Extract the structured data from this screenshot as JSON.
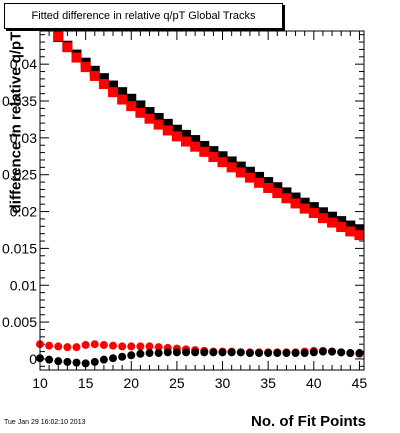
{
  "page": {
    "title": "Fitted difference in relative q/pT  Global Tracks",
    "timestamp": "Tue Jan 29 16:02:10 2013"
  },
  "chart_data": {
    "type": "scatter",
    "title": "Fitted difference in relative q/pT  Global Tracks",
    "xlabel": "No. of Fit Points",
    "ylabel": "difference in relative q/pT",
    "xlim": [
      10,
      45.5
    ],
    "ylim": [
      -0.0015,
      0.0445
    ],
    "x_ticks": [
      "10",
      "15",
      "20",
      "25",
      "30",
      "35",
      "40",
      "45"
    ],
    "y_ticks": [
      "0",
      "0.005",
      "0.01",
      "0.015",
      "0.02",
      "0.025",
      "0.03",
      "0.035",
      "0.04"
    ],
    "y_tick_values": [
      0,
      0.005,
      0.01,
      0.015,
      0.02,
      0.025,
      0.03,
      0.035,
      0.04
    ],
    "grid": false,
    "legend": false,
    "colors": {
      "black": "#000000",
      "red": "#ff0000"
    },
    "series": [
      {
        "marker": "square",
        "color": "#000000",
        "x": [
          12,
          13,
          14,
          15,
          16,
          17,
          18,
          19,
          20,
          21,
          22,
          23,
          24,
          25,
          26,
          27,
          28,
          29,
          30,
          31,
          32,
          33,
          34,
          35,
          36,
          37,
          38,
          39,
          40,
          41,
          42,
          43,
          44,
          45
        ],
        "y": [
          0.0437,
          0.0425,
          0.0413,
          0.0402,
          0.0391,
          0.0381,
          0.0371,
          0.0362,
          0.0353,
          0.0344,
          0.0335,
          0.0327,
          0.0319,
          0.0311,
          0.0304,
          0.0297,
          0.0289,
          0.0282,
          0.0275,
          0.0268,
          0.0261,
          0.0254,
          0.0247,
          0.024,
          0.0233,
          0.0226,
          0.0219,
          0.0212,
          0.0206,
          0.0199,
          0.0193,
          0.0187,
          0.0181,
          0.0176
        ]
      },
      {
        "marker": "square",
        "color": "#ff0000",
        "x": [
          12,
          13,
          14,
          15,
          16,
          17,
          18,
          19,
          20,
          21,
          22,
          23,
          24,
          25,
          26,
          27,
          28,
          29,
          30,
          31,
          32,
          33,
          34,
          35,
          36,
          37,
          38,
          39,
          40,
          41,
          42,
          43,
          44,
          45
        ],
        "y": [
          0.0438,
          0.0423,
          0.0409,
          0.0396,
          0.0384,
          0.0373,
          0.0362,
          0.0352,
          0.0343,
          0.0334,
          0.0326,
          0.0318,
          0.031,
          0.0302,
          0.0295,
          0.0288,
          0.0281,
          0.0274,
          0.0267,
          0.026,
          0.0253,
          0.0246,
          0.0239,
          0.0232,
          0.0225,
          0.0218,
          0.0211,
          0.0204,
          0.0198,
          0.0191,
          0.0185,
          0.0179,
          0.0173,
          0.0168
        ]
      },
      {
        "marker": "circle",
        "color": "#ff0000",
        "x": [
          10,
          11,
          12,
          13,
          14,
          15,
          16,
          17,
          18,
          19,
          20,
          21,
          22,
          23,
          24,
          25,
          26,
          27,
          28,
          29,
          30,
          31,
          32,
          33,
          34,
          35,
          36,
          37,
          38,
          39,
          40,
          41,
          42,
          43,
          44,
          45
        ],
        "y": [
          0.002,
          0.0018,
          0.0017,
          0.0016,
          0.0016,
          0.0019,
          0.002,
          0.0019,
          0.0018,
          0.0017,
          0.0017,
          0.0017,
          0.0017,
          0.0016,
          0.0015,
          0.0014,
          0.0013,
          0.0012,
          0.0011,
          0.001,
          0.001,
          0.001,
          0.0009,
          0.0009,
          0.0009,
          0.0009,
          0.0009,
          0.0009,
          0.0009,
          0.001,
          0.0011,
          0.0011,
          0.001,
          0.0009,
          0.0008,
          0.0007
        ]
      },
      {
        "marker": "circle",
        "color": "#000000",
        "x": [
          10,
          11,
          12,
          13,
          14,
          15,
          16,
          17,
          18,
          19,
          20,
          21,
          22,
          23,
          24,
          25,
          26,
          27,
          28,
          29,
          30,
          31,
          32,
          33,
          34,
          35,
          36,
          37,
          38,
          39,
          40,
          41,
          42,
          43,
          44,
          45
        ],
        "y": [
          0.0001,
          -0.0001,
          -0.0003,
          -0.0004,
          -0.0005,
          -0.0006,
          -0.0004,
          -0.0001,
          0.0001,
          0.0003,
          0.0005,
          0.0007,
          0.0008,
          0.0008,
          0.0009,
          0.0009,
          0.0009,
          0.0009,
          0.0009,
          0.0009,
          0.0009,
          0.0009,
          0.0009,
          0.0008,
          0.0008,
          0.0008,
          0.0008,
          0.0008,
          0.0008,
          0.0008,
          0.0009,
          0.001,
          0.001,
          0.0009,
          0.0008,
          0.0008
        ]
      }
    ]
  }
}
